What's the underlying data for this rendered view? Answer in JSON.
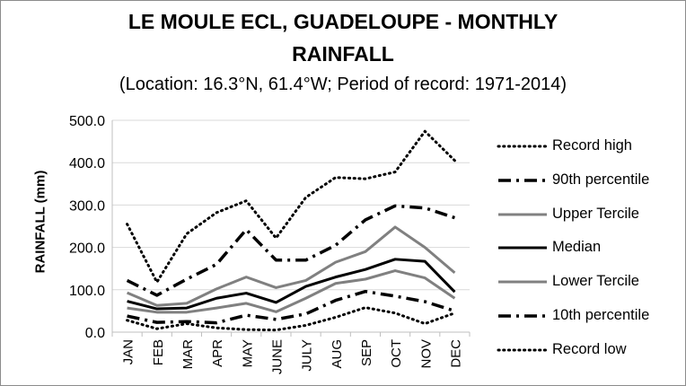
{
  "chart_data": {
    "type": "line",
    "title_line1": "LE MOULE ECL, GUADELOUPE - MONTHLY",
    "title_line2": "RAINFALL",
    "subtitle": "(Location: 16.3°N, 61.4°W; Period of record: 1971-2014)",
    "xlabel": "",
    "ylabel": "RAINFALL (mm)",
    "ylim": [
      0,
      500
    ],
    "yticks": [
      "0.0",
      "100.0",
      "200.0",
      "300.0",
      "400.0",
      "500.0"
    ],
    "categories": [
      "JAN",
      "FEB",
      "MAR",
      "APR",
      "MAY",
      "JUNE",
      "JULY",
      "AUG",
      "SEP",
      "OCT",
      "NOV",
      "DEC"
    ],
    "grid": "horizontal",
    "legend_position": "right",
    "series": [
      {
        "name": "Record high",
        "style": "dotted",
        "color": "#000000",
        "values": [
          255,
          118,
          232,
          282,
          310,
          222,
          318,
          365,
          362,
          378,
          474,
          405
        ]
      },
      {
        "name": "90th percentile",
        "style": "dashdot",
        "color": "#000000",
        "values": [
          122,
          87,
          125,
          160,
          242,
          170,
          170,
          205,
          265,
          298,
          293,
          270
        ]
      },
      {
        "name": "Upper Tercile",
        "style": "solid-gray",
        "color": "#808080",
        "values": [
          93,
          63,
          68,
          102,
          130,
          105,
          122,
          165,
          190,
          248,
          200,
          140
        ]
      },
      {
        "name": "Median",
        "style": "solid-black",
        "color": "#000000",
        "values": [
          73,
          55,
          57,
          80,
          92,
          70,
          108,
          130,
          148,
          172,
          167,
          95
        ]
      },
      {
        "name": "Lower Tercile",
        "style": "solid-gray",
        "color": "#808080",
        "values": [
          57,
          47,
          47,
          57,
          68,
          48,
          80,
          115,
          125,
          145,
          128,
          80
        ]
      },
      {
        "name": "10th percentile",
        "style": "dashdot",
        "color": "#000000",
        "values": [
          38,
          23,
          25,
          22,
          40,
          30,
          43,
          75,
          96,
          85,
          72,
          50
        ]
      },
      {
        "name": "Record low",
        "style": "dotted",
        "color": "#000000",
        "values": [
          28,
          8,
          20,
          10,
          6,
          5,
          16,
          35,
          58,
          45,
          20,
          45
        ]
      }
    ]
  }
}
